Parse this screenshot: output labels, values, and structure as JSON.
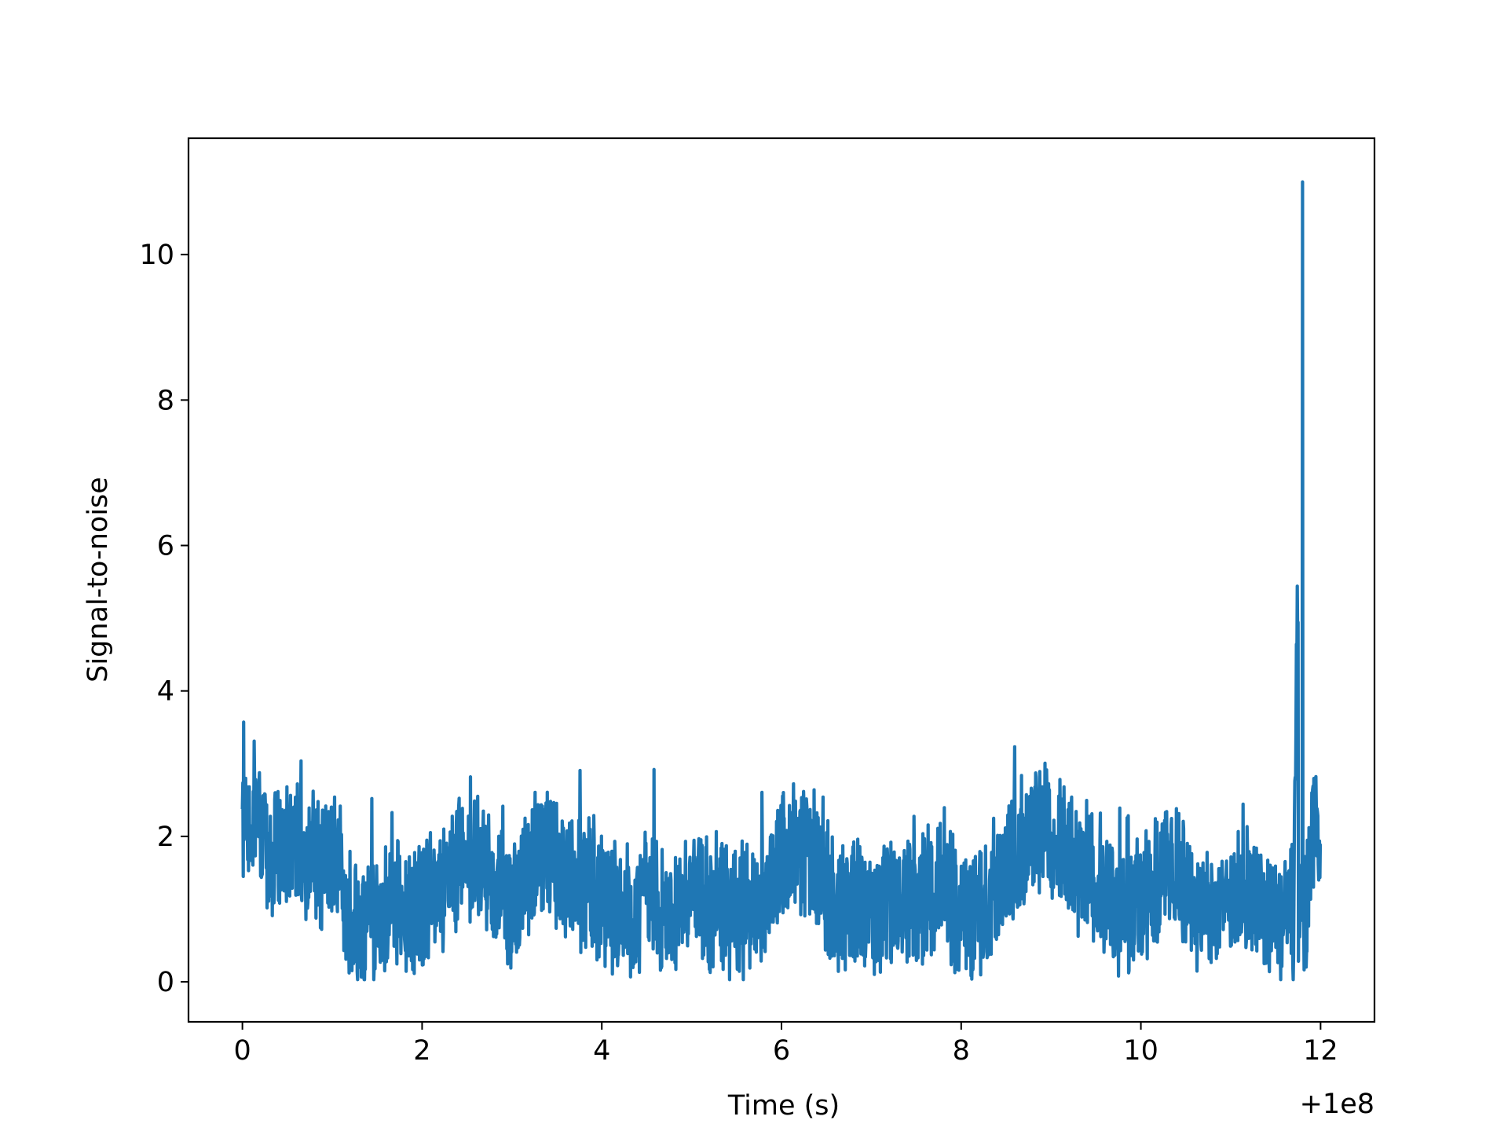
{
  "chart_data": {
    "type": "line",
    "title": "",
    "xlabel": "Time (s)",
    "ylabel": "Signal-to-noise",
    "x_offset_label": "+1e8",
    "xlim": [
      -0.6,
      12.6
    ],
    "ylim": [
      -0.55,
      11.6
    ],
    "xticks": [
      0,
      2,
      4,
      6,
      8,
      10,
      12
    ],
    "yticks": [
      0,
      2,
      4,
      6,
      8,
      10
    ],
    "grid": false,
    "legend": "none",
    "line_color": "#1f77b4",
    "series": [
      {
        "x": [
          0.0,
          0.15,
          0.3,
          0.45,
          0.6,
          0.75,
          0.9,
          1.05,
          1.2,
          1.35,
          1.5,
          1.65,
          1.8,
          1.95,
          2.1,
          2.25,
          2.4,
          2.55,
          2.7,
          2.85,
          3.0,
          3.15,
          3.3,
          3.45,
          3.6,
          3.75,
          3.9,
          4.05,
          4.2,
          4.35,
          4.5,
          4.65,
          4.8,
          4.95,
          5.1,
          5.25,
          5.4,
          5.55,
          5.7,
          5.85,
          6.0,
          6.15,
          6.3,
          6.45,
          6.6,
          6.75,
          6.9,
          7.05,
          7.2,
          7.35,
          7.5,
          7.65,
          7.8,
          7.95,
          8.1,
          8.25,
          8.4,
          8.55,
          8.7,
          8.85,
          9.0,
          9.15,
          9.3,
          9.45,
          9.6,
          9.75,
          9.9,
          10.05,
          10.2,
          10.35,
          10.5,
          10.65,
          10.8,
          10.95,
          11.1,
          11.25,
          11.4,
          11.55,
          11.7,
          11.8,
          11.85,
          11.9,
          12.0
        ],
        "y": [
          2.1,
          2.4,
          1.7,
          1.8,
          1.9,
          1.7,
          1.6,
          1.7,
          0.8,
          0.7,
          1.0,
          0.9,
          1.2,
          1.0,
          1.3,
          1.2,
          1.6,
          1.8,
          1.5,
          1.3,
          1.0,
          1.4,
          1.9,
          1.6,
          1.5,
          1.4,
          1.3,
          1.1,
          0.9,
          0.9,
          1.2,
          1.0,
          1.0,
          1.3,
          1.2,
          0.9,
          1.0,
          0.9,
          1.1,
          1.3,
          1.7,
          1.8,
          1.7,
          1.6,
          1.0,
          0.9,
          1.0,
          0.9,
          1.2,
          1.1,
          0.9,
          1.3,
          1.3,
          1.0,
          0.8,
          1.1,
          1.3,
          1.6,
          1.9,
          2.1,
          2.0,
          1.8,
          1.4,
          1.5,
          1.2,
          0.9,
          1.0,
          1.2,
          1.4,
          1.6,
          1.3,
          1.0,
          0.9,
          1.0,
          1.2,
          1.1,
          1.0,
          0.9,
          0.8,
          11.0,
          1.3,
          1.9,
          2.0
        ]
      }
    ]
  }
}
